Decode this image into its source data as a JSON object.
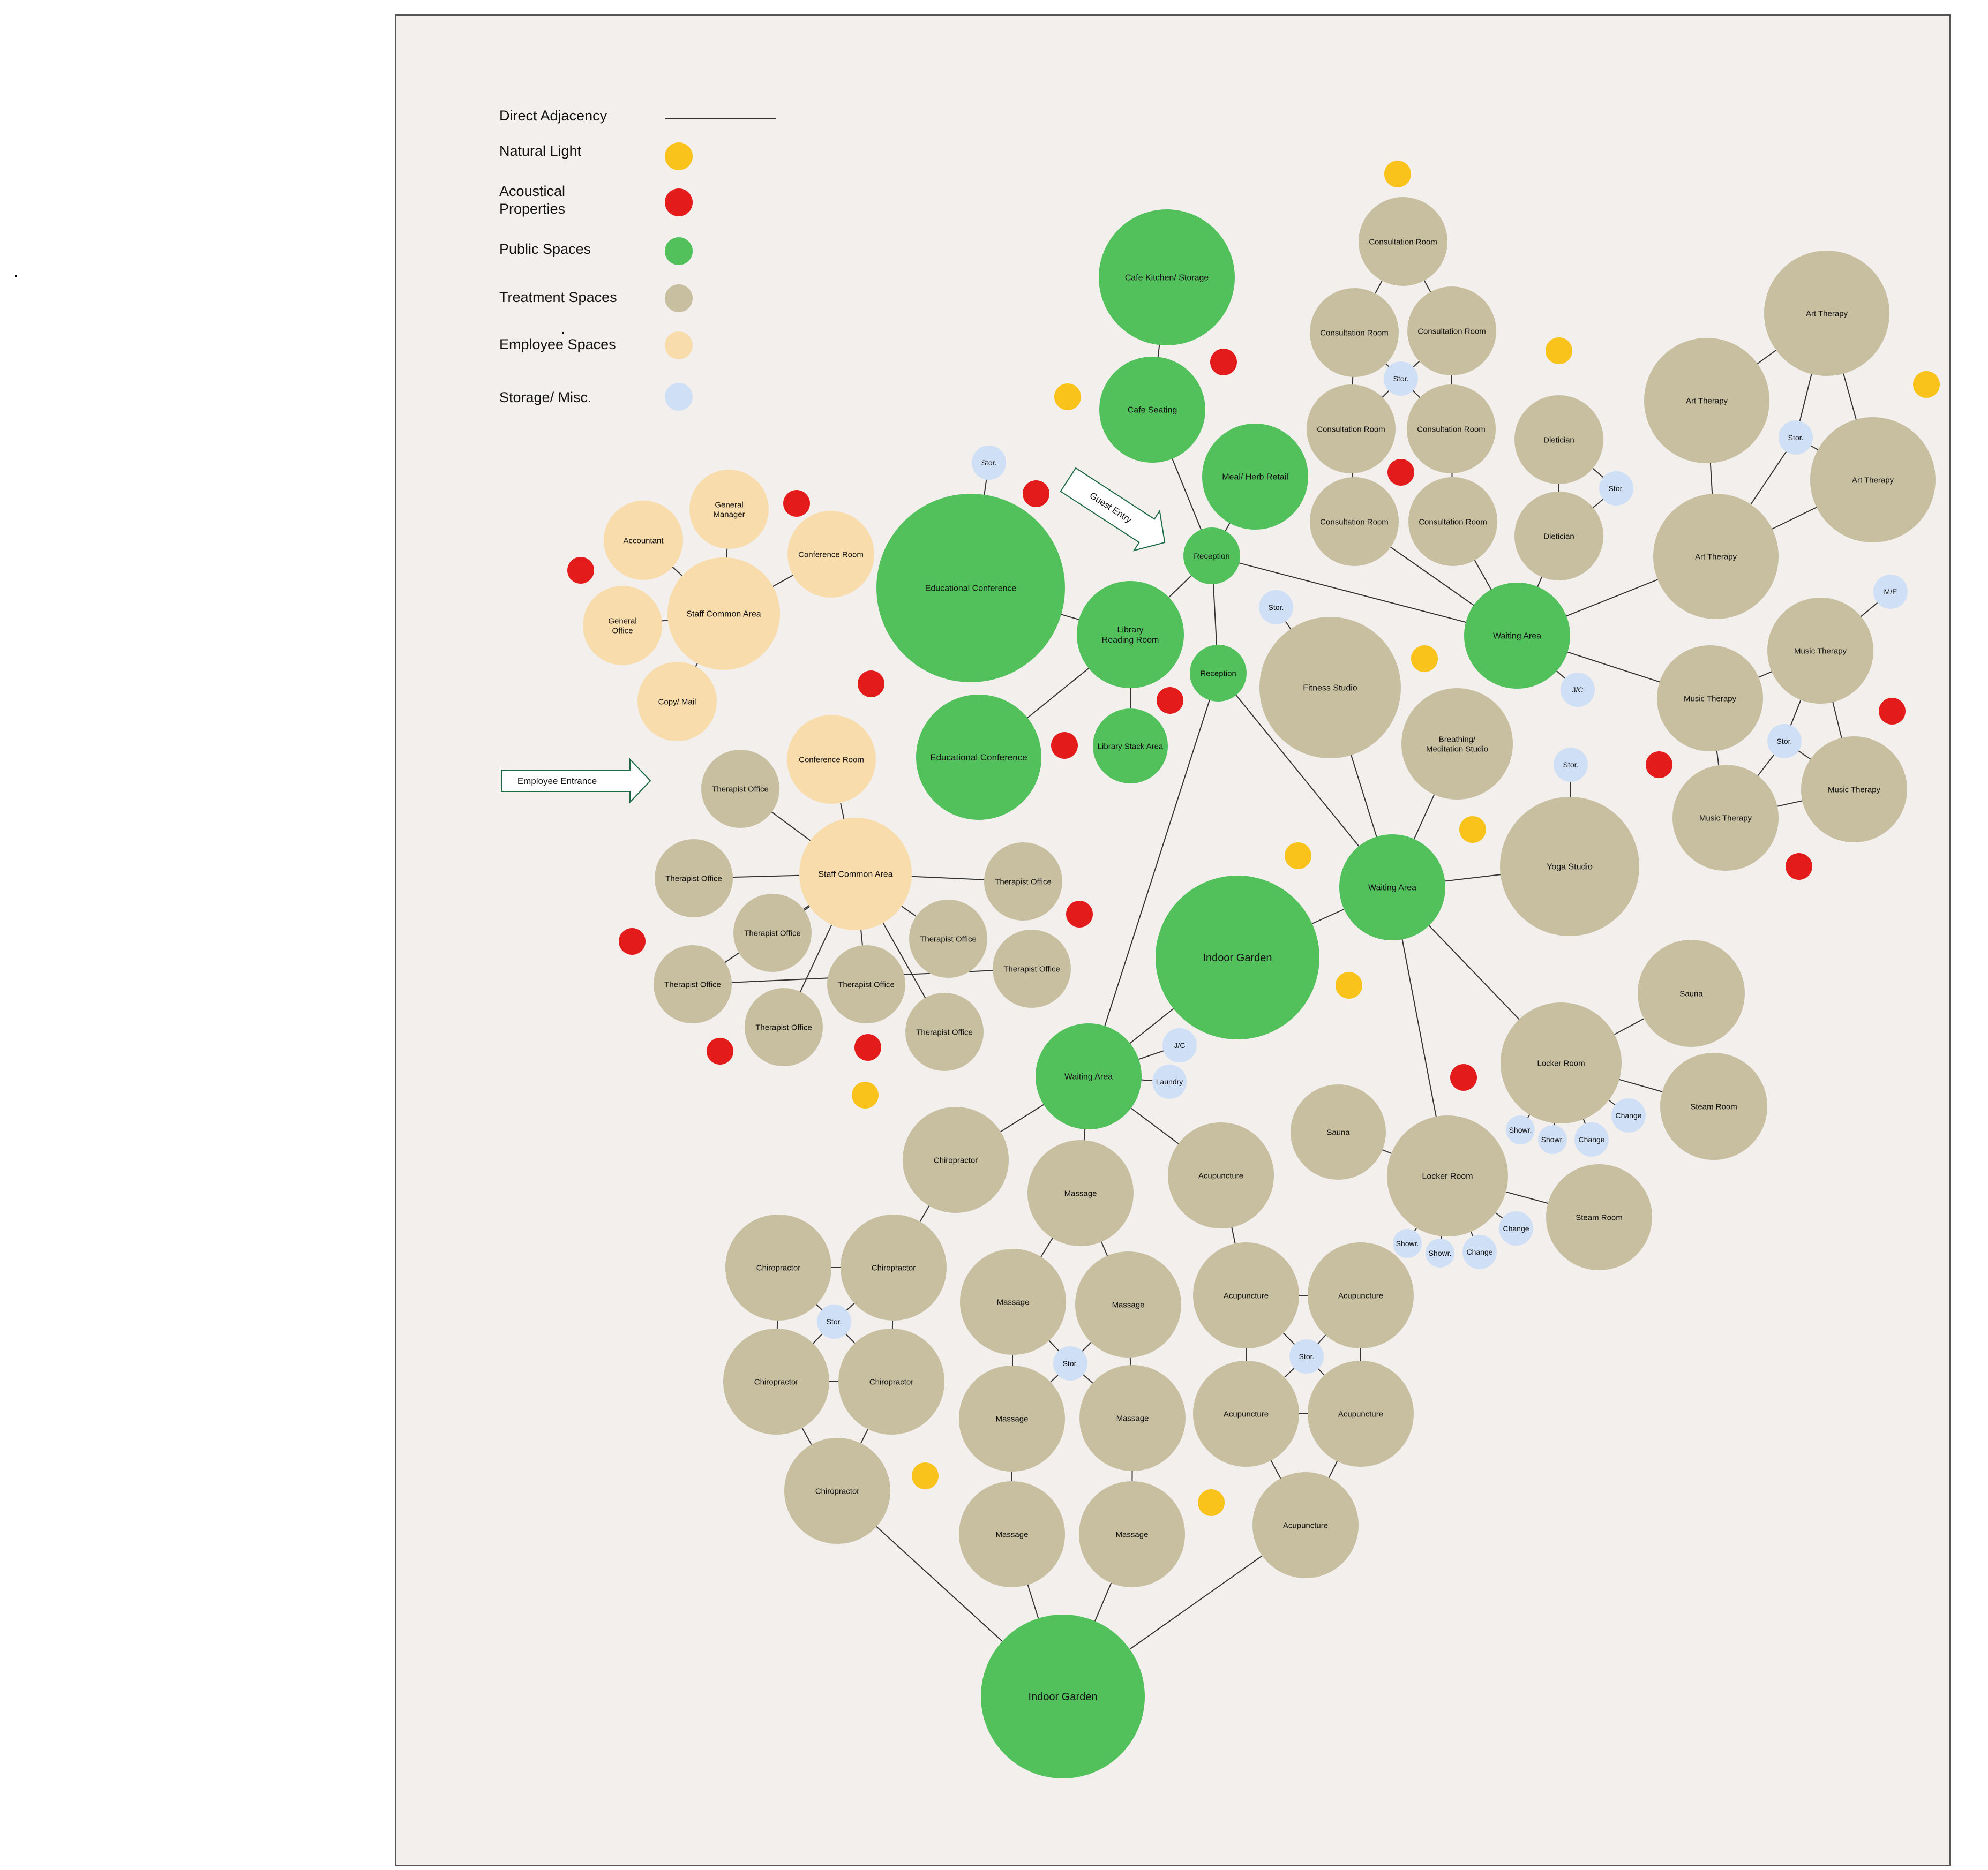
{
  "colors": {
    "natural_light": "#f9c31b",
    "acoustical": "#e41b1b",
    "public": "#52c15c",
    "treatment": "#c8bfa0",
    "employee": "#f8dcab",
    "storage": "#cfdff5",
    "frame_fill": "#f2efed",
    "line": "#333333"
  },
  "legend": {
    "items": [
      {
        "label": "Direct Adjacency",
        "kind": "line"
      },
      {
        "label": "Natural Light",
        "kind": "natural_light"
      },
      {
        "label": "Acoustical\nProperties",
        "kind": "acoustical"
      },
      {
        "label": "Public Spaces",
        "kind": "public"
      },
      {
        "label": "Treatment Spaces",
        "kind": "treatment"
      },
      {
        "label": "Employee Spaces",
        "kind": "employee"
      },
      {
        "label": "Storage/ Misc.",
        "kind": "storage"
      }
    ]
  },
  "arrows": [
    {
      "label": "Guest Entry"
    },
    {
      "label": "Employee Entrance"
    }
  ],
  "spaces": [
    {
      "id": "cafe_kitchen",
      "label": "Cafe Kitchen/ Storage",
      "type": "public"
    },
    {
      "id": "cafe_seating",
      "label": "Cafe Seating",
      "type": "public"
    },
    {
      "id": "meal_retail",
      "label": "Meal/ Herb Retail",
      "type": "public"
    },
    {
      "id": "reception1",
      "label": "Reception",
      "type": "public"
    },
    {
      "id": "reception2",
      "label": "Reception",
      "type": "public"
    },
    {
      "id": "edu_conf1",
      "label": "Educational Conference",
      "type": "public"
    },
    {
      "id": "edu_conf2",
      "label": "Educational Conference",
      "type": "public"
    },
    {
      "id": "library_reading",
      "label": "Library\nReading Room",
      "type": "public"
    },
    {
      "id": "library_stack",
      "label": "Library Stack Area",
      "type": "public"
    },
    {
      "id": "stor_edu",
      "label": "Stor.",
      "type": "storage"
    },
    {
      "id": "staff_common1",
      "label": "Staff Common Area",
      "type": "employee"
    },
    {
      "id": "accountant",
      "label": "Accountant",
      "type": "employee"
    },
    {
      "id": "general_manager",
      "label": "General\nManager",
      "type": "employee"
    },
    {
      "id": "conf_room1",
      "label": "Conference Room",
      "type": "employee"
    },
    {
      "id": "general_office",
      "label": "General\nOffice",
      "type": "employee"
    },
    {
      "id": "copy_mail",
      "label": "Copy/ Mail",
      "type": "employee"
    },
    {
      "id": "staff_common2",
      "label": "Staff Common Area",
      "type": "employee"
    },
    {
      "id": "conf_room2",
      "label": "Conference Room",
      "type": "employee"
    },
    {
      "id": "ther_off1",
      "label": "Therapist Office",
      "type": "treatment"
    },
    {
      "id": "ther_off2",
      "label": "Therapist Office",
      "type": "treatment"
    },
    {
      "id": "ther_off3",
      "label": "Therapist Office",
      "type": "treatment"
    },
    {
      "id": "ther_off4",
      "label": "Therapist Office",
      "type": "treatment"
    },
    {
      "id": "ther_off5",
      "label": "Therapist Office",
      "type": "treatment"
    },
    {
      "id": "ther_off6",
      "label": "Therapist Office",
      "type": "treatment"
    },
    {
      "id": "ther_off7",
      "label": "Therapist Office",
      "type": "treatment"
    },
    {
      "id": "ther_off8",
      "label": "Therapist Office",
      "type": "treatment"
    },
    {
      "id": "ther_off9",
      "label": "Therapist Office",
      "type": "treatment"
    },
    {
      "id": "ther_off10",
      "label": "Therapist Office",
      "type": "treatment"
    },
    {
      "id": "consult1",
      "label": "Consultation Room",
      "type": "treatment"
    },
    {
      "id": "consult2",
      "label": "Consultation Room",
      "type": "treatment"
    },
    {
      "id": "consult3",
      "label": "Consultation Room",
      "type": "treatment"
    },
    {
      "id": "consult4",
      "label": "Consultation Room",
      "type": "treatment"
    },
    {
      "id": "consult5",
      "label": "Consultation Room",
      "type": "treatment"
    },
    {
      "id": "consult6",
      "label": "Consultation Room",
      "type": "treatment"
    },
    {
      "id": "consult7",
      "label": "Consultation Room",
      "type": "treatment"
    },
    {
      "id": "stor_consult",
      "label": "Stor.",
      "type": "storage"
    },
    {
      "id": "dietician1",
      "label": "Dietician",
      "type": "treatment"
    },
    {
      "id": "dietician2",
      "label": "Dietician",
      "type": "treatment"
    },
    {
      "id": "stor_diet",
      "label": "Stor.",
      "type": "storage"
    },
    {
      "id": "waiting1",
      "label": "Waiting Area",
      "type": "public"
    },
    {
      "id": "jc1",
      "label": "J/C",
      "type": "storage"
    },
    {
      "id": "art1",
      "label": "Art Therapy",
      "type": "treatment"
    },
    {
      "id": "art2",
      "label": "Art Therapy",
      "type": "treatment"
    },
    {
      "id": "art3",
      "label": "Art Therapy",
      "type": "treatment"
    },
    {
      "id": "art4",
      "label": "Art Therapy",
      "type": "treatment"
    },
    {
      "id": "stor_art",
      "label": "Stor.",
      "type": "storage"
    },
    {
      "id": "music1",
      "label": "Music Therapy",
      "type": "treatment"
    },
    {
      "id": "music2",
      "label": "Music Therapy",
      "type": "treatment"
    },
    {
      "id": "music3",
      "label": "Music Therapy",
      "type": "treatment"
    },
    {
      "id": "music4",
      "label": "Music Therapy",
      "type": "treatment"
    },
    {
      "id": "stor_music",
      "label": "Stor.",
      "type": "storage"
    },
    {
      "id": "me",
      "label": "M/E",
      "type": "storage"
    },
    {
      "id": "stor_fitness",
      "label": "Stor.",
      "type": "storage"
    },
    {
      "id": "fitness",
      "label": "Fitness Studio",
      "type": "treatment"
    },
    {
      "id": "breathing",
      "label": "Breathing/\nMeditation Studio",
      "type": "treatment"
    },
    {
      "id": "waiting2",
      "label": "Waiting Area",
      "type": "public"
    },
    {
      "id": "stor_yoga",
      "label": "Stor.",
      "type": "storage"
    },
    {
      "id": "yoga",
      "label": "Yoga Studio",
      "type": "treatment"
    },
    {
      "id": "garden1",
      "label": "Indoor Garden",
      "type": "public"
    },
    {
      "id": "sauna1",
      "label": "Sauna",
      "type": "treatment"
    },
    {
      "id": "locker1",
      "label": "Locker Room",
      "type": "treatment"
    },
    {
      "id": "steam1",
      "label": "Steam Room",
      "type": "treatment"
    },
    {
      "id": "change1a",
      "label": "Change",
      "type": "storage"
    },
    {
      "id": "change1b",
      "label": "Change",
      "type": "storage"
    },
    {
      "id": "showr1a",
      "label": "Showr.",
      "type": "storage"
    },
    {
      "id": "showr1b",
      "label": "Showr.",
      "type": "storage"
    },
    {
      "id": "sauna2",
      "label": "Sauna",
      "type": "treatment"
    },
    {
      "id": "locker2",
      "label": "Locker Room",
      "type": "treatment"
    },
    {
      "id": "steam2",
      "label": "Steam Room",
      "type": "treatment"
    },
    {
      "id": "change2a",
      "label": "Change",
      "type": "storage"
    },
    {
      "id": "change2b",
      "label": "Change",
      "type": "storage"
    },
    {
      "id": "showr2a",
      "label": "Showr.",
      "type": "storage"
    },
    {
      "id": "showr2b",
      "label": "Showr.",
      "type": "storage"
    },
    {
      "id": "waiting3",
      "label": "Waiting Area",
      "type": "public"
    },
    {
      "id": "jc2",
      "label": "J/C",
      "type": "storage"
    },
    {
      "id": "laundry",
      "label": "Laundry",
      "type": "storage"
    },
    {
      "id": "chiro1",
      "label": "Chiropractor",
      "type": "treatment"
    },
    {
      "id": "chiro2",
      "label": "Chiropractor",
      "type": "treatment"
    },
    {
      "id": "chiro3",
      "label": "Chiropractor",
      "type": "treatment"
    },
    {
      "id": "chiro4",
      "label": "Chiropractor",
      "type": "treatment"
    },
    {
      "id": "chiro5",
      "label": "Chiropractor",
      "type": "treatment"
    },
    {
      "id": "chiro6",
      "label": "Chiropractor",
      "type": "treatment"
    },
    {
      "id": "stor_chiro",
      "label": "Stor.",
      "type": "storage"
    },
    {
      "id": "massage1",
      "label": "Massage",
      "type": "treatment"
    },
    {
      "id": "massage2",
      "label": "Massage",
      "type": "treatment"
    },
    {
      "id": "massage3",
      "label": "Massage",
      "type": "treatment"
    },
    {
      "id": "massage4",
      "label": "Massage",
      "type": "treatment"
    },
    {
      "id": "massage5",
      "label": "Massage",
      "type": "treatment"
    },
    {
      "id": "massage6",
      "label": "Massage",
      "type": "treatment"
    },
    {
      "id": "massage7",
      "label": "Massage",
      "type": "treatment"
    },
    {
      "id": "stor_massage",
      "label": "Stor.",
      "type": "storage"
    },
    {
      "id": "acu1",
      "label": "Acupuncture",
      "type": "treatment"
    },
    {
      "id": "acu2",
      "label": "Acupuncture",
      "type": "treatment"
    },
    {
      "id": "acu3",
      "label": "Acupuncture",
      "type": "treatment"
    },
    {
      "id": "acu4",
      "label": "Acupuncture",
      "type": "treatment"
    },
    {
      "id": "acu5",
      "label": "Acupuncture",
      "type": "treatment"
    },
    {
      "id": "acu6",
      "label": "Acupuncture",
      "type": "treatment"
    },
    {
      "id": "stor_acu",
      "label": "Stor.",
      "type": "storage"
    },
    {
      "id": "garden2",
      "label": "Indoor Garden",
      "type": "public"
    }
  ],
  "adjacencies": [
    [
      "cafe_kitchen",
      "cafe_seating"
    ],
    [
      "cafe_seating",
      "reception1"
    ],
    [
      "meal_retail",
      "reception1"
    ],
    [
      "reception1",
      "library_reading"
    ],
    [
      "reception1",
      "reception2"
    ],
    [
      "reception1",
      "waiting1"
    ],
    [
      "edu_conf1",
      "library_reading"
    ],
    [
      "edu_conf2",
      "library_reading"
    ],
    [
      "library_reading",
      "library_stack"
    ],
    [
      "stor_edu",
      "edu_conf1"
    ],
    [
      "staff_common1",
      "accountant"
    ],
    [
      "staff_common1",
      "general_manager"
    ],
    [
      "staff_common1",
      "conf_room1"
    ],
    [
      "staff_common1",
      "general_office"
    ],
    [
      "staff_common1",
      "copy_mail"
    ],
    [
      "staff_common2",
      "conf_room2"
    ],
    [
      "staff_common2",
      "ther_off1"
    ],
    [
      "staff_common2",
      "ther_off2"
    ],
    [
      "staff_common2",
      "ther_off3"
    ],
    [
      "staff_common2",
      "ther_off4"
    ],
    [
      "staff_common2",
      "ther_off5"
    ],
    [
      "staff_common2",
      "ther_off6"
    ],
    [
      "staff_common2",
      "ther_off7"
    ],
    [
      "staff_common2",
      "ther_off8"
    ],
    [
      "staff_common2",
      "ther_off9"
    ],
    [
      "ther_off4",
      "ther_off10"
    ],
    [
      "consult1",
      "consult2"
    ],
    [
      "consult1",
      "consult3"
    ],
    [
      "consult2",
      "consult4"
    ],
    [
      "consult3",
      "consult5"
    ],
    [
      "consult4",
      "consult6"
    ],
    [
      "consult5",
      "consult7"
    ],
    [
      "consult6",
      "waiting1"
    ],
    [
      "consult7",
      "waiting1"
    ],
    [
      "stor_consult",
      "consult2"
    ],
    [
      "stor_consult",
      "consult3"
    ],
    [
      "stor_consult",
      "consult4"
    ],
    [
      "stor_consult",
      "consult5"
    ],
    [
      "dietician1",
      "dietician2"
    ],
    [
      "stor_diet",
      "dietician1"
    ],
    [
      "stor_diet",
      "dietician2"
    ],
    [
      "dietician2",
      "waiting1"
    ],
    [
      "waiting1",
      "art3"
    ],
    [
      "waiting1",
      "music2"
    ],
    [
      "waiting1",
      "jc1"
    ],
    [
      "art1",
      "art2"
    ],
    [
      "art1",
      "stor_art"
    ],
    [
      "art1",
      "art4"
    ],
    [
      "art2",
      "art3"
    ],
    [
      "art3",
      "stor_art"
    ],
    [
      "art3",
      "art4"
    ],
    [
      "stor_art",
      "art4"
    ],
    [
      "music1",
      "music2"
    ],
    [
      "music1",
      "me"
    ],
    [
      "music1",
      "stor_music"
    ],
    [
      "music1",
      "music4"
    ],
    [
      "music2",
      "music3"
    ],
    [
      "music3",
      "stor_music"
    ],
    [
      "music3",
      "music4"
    ],
    [
      "stor_music",
      "music4"
    ],
    [
      "stor_fitness",
      "fitness"
    ],
    [
      "fitness",
      "waiting2"
    ],
    [
      "breathing",
      "waiting2"
    ],
    [
      "reception2",
      "waiting2"
    ],
    [
      "reception2",
      "waiting3"
    ],
    [
      "waiting2",
      "yoga"
    ],
    [
      "stor_yoga",
      "yoga"
    ],
    [
      "waiting2",
      "garden1"
    ],
    [
      "waiting2",
      "locker1"
    ],
    [
      "waiting2",
      "locker2"
    ],
    [
      "locker1",
      "sauna1"
    ],
    [
      "locker1",
      "steam1"
    ],
    [
      "locker1",
      "change1a"
    ],
    [
      "locker1",
      "change1b"
    ],
    [
      "locker1",
      "showr1a"
    ],
    [
      "locker1",
      "showr1b"
    ],
    [
      "locker2",
      "sauna2"
    ],
    [
      "locker2",
      "steam2"
    ],
    [
      "locker2",
      "change2a"
    ],
    [
      "locker2",
      "change2b"
    ],
    [
      "locker2",
      "showr2a"
    ],
    [
      "locker2",
      "showr2b"
    ],
    [
      "waiting3",
      "garden1"
    ],
    [
      "waiting3",
      "jc2"
    ],
    [
      "waiting3",
      "laundry"
    ],
    [
      "waiting3",
      "chiro1"
    ],
    [
      "waiting3",
      "massage1"
    ],
    [
      "waiting3",
      "acu1"
    ],
    [
      "chiro1",
      "chiro3"
    ],
    [
      "chiro2",
      "chiro3"
    ],
    [
      "chiro2",
      "chiro4"
    ],
    [
      "chiro3",
      "chiro5"
    ],
    [
      "chiro4",
      "chiro5"
    ],
    [
      "stor_chiro",
      "chiro2"
    ],
    [
      "stor_chiro",
      "chiro3"
    ],
    [
      "stor_chiro",
      "chiro4"
    ],
    [
      "stor_chiro",
      "chiro5"
    ],
    [
      "chiro4",
      "chiro6"
    ],
    [
      "chiro5",
      "chiro6"
    ],
    [
      "massage1",
      "massage2"
    ],
    [
      "massage1",
      "massage3"
    ],
    [
      "massage2",
      "massage4"
    ],
    [
      "massage3",
      "massage5"
    ],
    [
      "stor_massage",
      "massage2"
    ],
    [
      "stor_massage",
      "massage3"
    ],
    [
      "stor_massage",
      "massage4"
    ],
    [
      "stor_massage",
      "massage5"
    ],
    [
      "massage4",
      "massage6"
    ],
    [
      "massage5",
      "massage7"
    ],
    [
      "acu1",
      "acu2"
    ],
    [
      "acu2",
      "acu3"
    ],
    [
      "acu2",
      "acu4"
    ],
    [
      "acu3",
      "acu5"
    ],
    [
      "acu4",
      "acu5"
    ],
    [
      "stor_acu",
      "acu2"
    ],
    [
      "stor_acu",
      "acu3"
    ],
    [
      "stor_acu",
      "acu4"
    ],
    [
      "stor_acu",
      "acu5"
    ],
    [
      "acu4",
      "acu6"
    ],
    [
      "acu5",
      "acu6"
    ],
    [
      "chiro6",
      "garden2"
    ],
    [
      "massage6",
      "garden2"
    ],
    [
      "massage7",
      "garden2"
    ],
    [
      "acu6",
      "garden2"
    ]
  ]
}
